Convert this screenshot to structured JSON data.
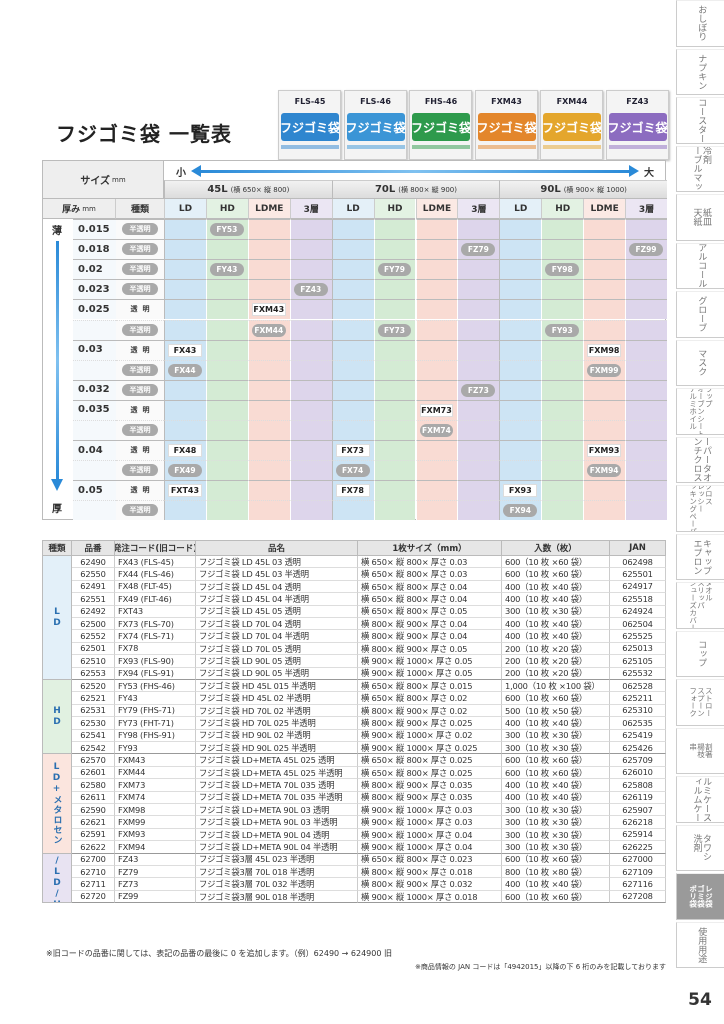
{
  "header": {
    "title": "フジゴミ袋 一覧表"
  },
  "packages": {
    "name": "フジゴミ袋",
    "codes": [
      "FLS-45",
      "FLS-46",
      "FHS-46",
      "FXM43",
      "FXM44",
      "FZ43"
    ]
  },
  "matrix": {
    "size_label": "サイズ",
    "size_unit": "mm",
    "small": "小",
    "large": "大",
    "thickness_label": "厚み",
    "thickness_unit": "mm",
    "kind_label": "種類",
    "thin": "薄",
    "thick": "厚",
    "groups": [
      {
        "name": "45L",
        "dims": "(横 650× 縦 800)"
      },
      {
        "name": "70L",
        "dims": "(横 800× 縦 900)"
      },
      {
        "name": "90L",
        "dims": "(横 900× 縦 1000)"
      }
    ],
    "columns": [
      "LD",
      "HD",
      "LDME",
      "3層"
    ],
    "rows": [
      {
        "thickness": "0.015",
        "kind": "半透明",
        "cells": [
          null,
          "FY53",
          null,
          null,
          null,
          null,
          null,
          null,
          null,
          null,
          null,
          null
        ]
      },
      {
        "thickness": "0.018",
        "kind": "半透明",
        "cells": [
          null,
          null,
          null,
          null,
          null,
          null,
          null,
          "FZ79",
          null,
          null,
          null,
          "FZ99"
        ]
      },
      {
        "thickness": "0.02",
        "kind": "半透明",
        "cells": [
          null,
          "FY43",
          null,
          null,
          null,
          "FY79",
          null,
          null,
          null,
          "FY98",
          null,
          null
        ]
      },
      {
        "thickness": "0.023",
        "kind": "半透明",
        "cells": [
          null,
          null,
          null,
          "FZ43",
          null,
          null,
          null,
          null,
          null,
          null,
          null,
          null
        ]
      },
      {
        "thickness": "0.025",
        "kind": "透明",
        "cells": [
          null,
          null,
          "FXM43",
          null,
          null,
          null,
          null,
          null,
          null,
          null,
          null,
          null
        ]
      },
      {
        "thickness": null,
        "kind": "半透明",
        "cells": [
          null,
          null,
          "FXM44",
          null,
          null,
          "FY73",
          null,
          null,
          null,
          "FY93",
          null,
          null
        ]
      },
      {
        "thickness": "0.03",
        "kind": "透明",
        "cells": [
          "FX43",
          null,
          null,
          null,
          null,
          null,
          null,
          null,
          null,
          null,
          "FXM98",
          null
        ]
      },
      {
        "thickness": null,
        "kind": "半透明",
        "cells": [
          "FX44",
          null,
          null,
          null,
          null,
          null,
          null,
          null,
          null,
          null,
          "FXM99",
          null
        ]
      },
      {
        "thickness": "0.032",
        "kind": "半透明",
        "cells": [
          null,
          null,
          null,
          null,
          null,
          null,
          null,
          "FZ73",
          null,
          null,
          null,
          null
        ]
      },
      {
        "thickness": "0.035",
        "kind": "透明",
        "cells": [
          null,
          null,
          null,
          null,
          null,
          null,
          "FXM73",
          null,
          null,
          null,
          null,
          null
        ]
      },
      {
        "thickness": null,
        "kind": "半透明",
        "cells": [
          null,
          null,
          null,
          null,
          null,
          null,
          "FXM74",
          null,
          null,
          null,
          null,
          null
        ]
      },
      {
        "thickness": "0.04",
        "kind": "透明",
        "cells": [
          "FX48",
          null,
          null,
          null,
          "FX73",
          null,
          null,
          null,
          null,
          null,
          "FXM93",
          null
        ]
      },
      {
        "thickness": null,
        "kind": "半透明",
        "cells": [
          "FX49",
          null,
          null,
          null,
          "FX74",
          null,
          null,
          null,
          null,
          null,
          "FXM94",
          null
        ]
      },
      {
        "thickness": "0.05",
        "kind": "透明",
        "cells": [
          "FXT43",
          null,
          null,
          null,
          "FX78",
          null,
          null,
          null,
          "FX93",
          null,
          null,
          null
        ]
      },
      {
        "thickness": null,
        "kind": "半透明",
        "cells": [
          null,
          null,
          null,
          null,
          null,
          null,
          null,
          null,
          "FX94",
          null,
          null,
          null
        ]
      }
    ]
  },
  "table": {
    "headers": [
      "種類",
      "品番",
      "発注コード(旧コード)",
      "品名",
      "1枚サイズ（mm）",
      "入数（枚）",
      "JAN"
    ],
    "groups": [
      {
        "name": "LD",
        "rows": [
          [
            "62490",
            "FX43 (FLS-45)",
            "フジゴミ袋 LD 45L 03 透明",
            "横 650× 縦 800× 厚さ 0.03",
            "600（10 枚 ×60 袋）",
            "062498"
          ],
          [
            "62550",
            "FX44 (FLS-46)",
            "フジゴミ袋 LD 45L 03 半透明",
            "横 650× 縦 800× 厚さ 0.03",
            "600（10 枚 ×60 袋）",
            "625501"
          ],
          [
            "62491",
            "FX48 (FLT-45)",
            "フジゴミ袋 LD 45L 04 透明",
            "横 650× 縦 800× 厚さ 0.04",
            "400（10 枚 ×40 袋）",
            "624917"
          ],
          [
            "62551",
            "FX49 (FLT-46)",
            "フジゴミ袋 LD 45L 04 半透明",
            "横 650× 縦 800× 厚さ 0.04",
            "400（10 枚 ×40 袋）",
            "625518"
          ],
          [
            "62492",
            "FXT43",
            "フジゴミ袋 LD 45L 05 透明",
            "横 650× 縦 800× 厚さ 0.05",
            "300（10 枚 ×30 袋）",
            "624924"
          ],
          [
            "62500",
            "FX73 (FLS-70)",
            "フジゴミ袋 LD 70L 04 透明",
            "横 800× 縦 900× 厚さ 0.04",
            "400（10 枚 ×40 袋）",
            "062504"
          ],
          [
            "62552",
            "FX74 (FLS-71)",
            "フジゴミ袋 LD 70L 04 半透明",
            "横 800× 縦 900× 厚さ 0.04",
            "400（10 枚 ×40 袋）",
            "625525"
          ],
          [
            "62501",
            "FX78",
            "フジゴミ袋 LD 70L 05 透明",
            "横 800× 縦 900× 厚さ 0.05",
            "200（10 枚 ×20 袋）",
            "625013"
          ],
          [
            "62510",
            "FX93 (FLS-90)",
            "フジゴミ袋 LD 90L 05 透明",
            "横 900× 縦 1000× 厚さ 0.05",
            "200（10 枚 ×20 袋）",
            "625105"
          ],
          [
            "62553",
            "FX94 (FLS-91)",
            "フジゴミ袋 LD 90L 05 半透明",
            "横 900× 縦 1000× 厚さ 0.05",
            "200（10 枚 ×20 袋）",
            "625532"
          ]
        ]
      },
      {
        "name": "HD",
        "rows": [
          [
            "62520",
            "FY53 (FHS-46)",
            "フジゴミ袋 HD 45L 015 半透明",
            "横 650× 縦 800× 厚さ 0.015",
            "1,000（10 枚 ×100 袋）",
            "062528"
          ],
          [
            "62521",
            "FY43",
            "フジゴミ袋 HD 45L 02 半透明",
            "横 650× 縦 800× 厚さ 0.02",
            "600（10 枚 ×60 袋）",
            "625211"
          ],
          [
            "62531",
            "FY79 (FHS-71)",
            "フジゴミ袋 HD 70L 02 半透明",
            "横 800× 縦 900× 厚さ 0.02",
            "500（10 枚 ×50 袋）",
            "625310"
          ],
          [
            "62530",
            "FY73 (FHT-71)",
            "フジゴミ袋 HD 70L 025 半透明",
            "横 800× 縦 900× 厚さ 0.025",
            "400（10 枚 ×40 袋）",
            "062535"
          ],
          [
            "62541",
            "FY98 (FHS-91)",
            "フジゴミ袋 HD 90L 02 半透明",
            "横 900× 縦 1000× 厚さ 0.02",
            "300（10 枚 ×30 袋）",
            "625419"
          ],
          [
            "62542",
            "FY93",
            "フジゴミ袋 HD 90L 025 半透明",
            "横 900× 縦 1000× 厚さ 0.025",
            "300（10 枚 ×30 袋）",
            "625426"
          ]
        ]
      },
      {
        "name": "LD+メタロセン",
        "rows": [
          [
            "62570",
            "FXM43",
            "フジゴミ袋 LD+META 45L 025 透明",
            "横 650× 縦 800× 厚さ 0.025",
            "600（10 枚 ×60 袋）",
            "625709"
          ],
          [
            "62601",
            "FXM44",
            "フジゴミ袋 LD+META 45L 025 半透明",
            "横 650× 縦 800× 厚さ 0.025",
            "600（10 枚 ×60 袋）",
            "626010"
          ],
          [
            "62580",
            "FXM73",
            "フジゴミ袋 LD+META 70L 035 透明",
            "横 800× 縦 900× 厚さ 0.035",
            "400（10 枚 ×40 袋）",
            "625808"
          ],
          [
            "62611",
            "FXM74",
            "フジゴミ袋 LD+META 70L 035 半透明",
            "横 800× 縦 900× 厚さ 0.035",
            "400（10 枚 ×40 袋）",
            "626119"
          ],
          [
            "62590",
            "FXM98",
            "フジゴミ袋 LD+META 90L 03 透明",
            "横 900× 縦 1000× 厚さ 0.03",
            "300（10 枚 ×30 袋）",
            "625907"
          ],
          [
            "62621",
            "FXM99",
            "フジゴミ袋 LD+META 90L 03 半透明",
            "横 900× 縦 1000× 厚さ 0.03",
            "300（10 枚 ×30 袋）",
            "626218"
          ],
          [
            "62591",
            "FXM93",
            "フジゴミ袋 LD+META 90L 04 透明",
            "横 900× 縦 1000× 厚さ 0.04",
            "300（10 枚 ×30 袋）",
            "625914"
          ],
          [
            "62622",
            "FXM94",
            "フジゴミ袋 LD+META 90L 04 半透明",
            "横 900× 縦 1000× 厚さ 0.04",
            "300（10 枚 ×30 袋）",
            "626225"
          ]
        ]
      },
      {
        "name": "HD/LD/HD",
        "rows": [
          [
            "62700",
            "FZ43",
            "フジゴミ袋3層 45L 023 半透明",
            "横 650× 縦 800× 厚さ 0.023",
            "600（10 枚 ×60 袋）",
            "627000"
          ],
          [
            "62710",
            "FZ79",
            "フジゴミ袋3層 70L 018 半透明",
            "横 800× 縦 900× 厚さ 0.018",
            "800（10 枚 ×80 袋）",
            "627109"
          ],
          [
            "62711",
            "FZ73",
            "フジゴミ袋3層 70L 032 半透明",
            "横 800× 縦 900× 厚さ 0.032",
            "400（10 枚 ×40 袋）",
            "627116"
          ],
          [
            "62720",
            "FZ99",
            "フジゴミ袋3層 90L 018 半透明",
            "横 900× 縦 1000× 厚さ 0.018",
            "600（10 枚 ×60 袋）",
            "627208"
          ]
        ]
      }
    ]
  },
  "notes": [
    "※旧コードの品番に関しては、表記の品番の最後に 0 を追加します。（例）62490 → 624900 旧",
    "※商品情報の JAN コードは「4942015」以降の下 6 桁のみを記載しております"
  ],
  "nav": {
    "tabs": [
      [
        "おしぼり"
      ],
      [
        "ナプキン"
      ],
      [
        "コースター"
      ],
      [
        "保冷剤",
        "テーブルマット"
      ],
      [
        "紙皿",
        "天紙"
      ],
      [
        "アルコール"
      ],
      [
        "グローブ"
      ],
      [
        "マスク"
      ],
      [
        "ラップ",
        "オーブンシート",
        "アルミホイル"
      ],
      [
        "ペーパータオル",
        "ランチクロス"
      ],
      [
        "フクロス",
        "ブレッシー",
        "クッキングペーパー"
      ],
      [
        "キャップ",
        "エプロン"
      ],
      [
        "タオル",
        "スリッパ",
        "シューズカバー"
      ],
      [
        "コップ"
      ],
      [
        "ストロー",
        "スプーン",
        "フォーク"
      ],
      [
        "割箸",
        "楊枝",
        "串"
      ],
      [
        "アルミケース",
        "フィルムケース"
      ],
      [
        "タワシ",
        "洗剤"
      ],
      [
        "レジ袋",
        "ゴミ袋",
        "ポリ袋"
      ],
      [
        "使用用途"
      ]
    ],
    "active": 18
  },
  "page_number": "54"
}
